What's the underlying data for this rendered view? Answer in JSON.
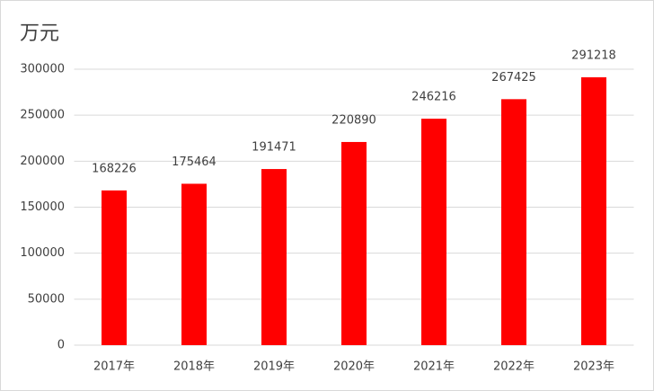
{
  "chart_data": {
    "type": "bar",
    "title": "万元",
    "categories": [
      "2017年",
      "2018年",
      "2019年",
      "2020年",
      "2021年",
      "2022年",
      "2023年"
    ],
    "values": [
      168226,
      175464,
      191471,
      220890,
      246216,
      267425,
      291218
    ],
    "color": "#ff0000",
    "ylim": [
      0,
      300000
    ],
    "yticks": [
      0,
      50000,
      100000,
      150000,
      200000,
      250000,
      300000
    ],
    "grid": true
  }
}
